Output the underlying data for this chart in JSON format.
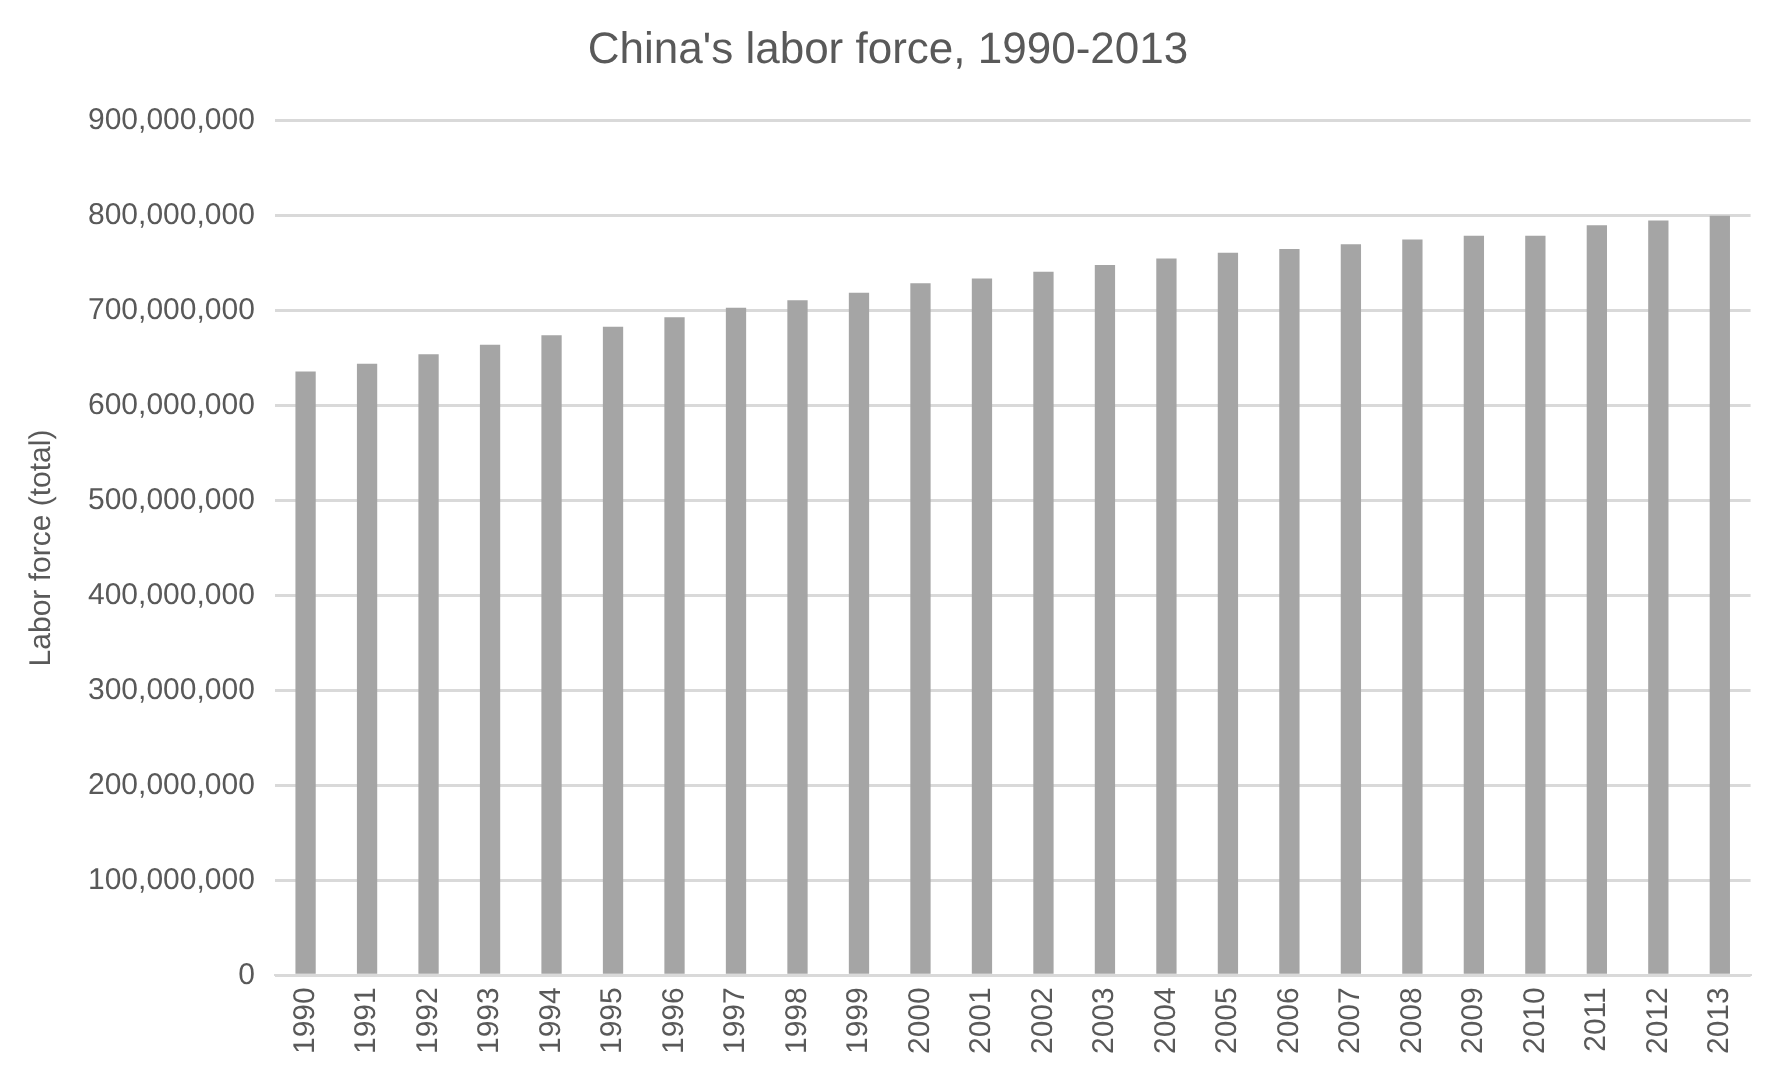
{
  "chart_data": {
    "type": "bar",
    "title": "China's labor force, 1990-2013",
    "ylabel": "Labor force (total)",
    "categories": [
      "1990",
      "1991",
      "1992",
      "1993",
      "1994",
      "1995",
      "1996",
      "1997",
      "1998",
      "1999",
      "2000",
      "2001",
      "2002",
      "2003",
      "2004",
      "2005",
      "2006",
      "2007",
      "2008",
      "2009",
      "2010",
      "2011",
      "2012",
      "2013"
    ],
    "values": [
      636000000,
      644000000,
      654000000,
      664000000,
      674000000,
      683000000,
      693000000,
      703000000,
      711000000,
      719000000,
      729000000,
      734000000,
      741000000,
      748000000,
      755000000,
      761000000,
      765000000,
      770000000,
      775000000,
      779000000,
      779000000,
      790000000,
      795000000,
      800000000
    ],
    "color": "#a5a5a5",
    "ylim": [
      0,
      900000000
    ],
    "yticks": [
      {
        "value": 0,
        "label": "0"
      },
      {
        "value": 100000000,
        "label": "100,000,000"
      },
      {
        "value": 200000000,
        "label": "200,000,000"
      },
      {
        "value": 300000000,
        "label": "300,000,000"
      },
      {
        "value": 400000000,
        "label": "400,000,000"
      },
      {
        "value": 500000000,
        "label": "500,000,000"
      },
      {
        "value": 600000000,
        "label": "600,000,000"
      },
      {
        "value": 700000000,
        "label": "700,000,000"
      },
      {
        "value": 800000000,
        "label": "800,000,000"
      },
      {
        "value": 900000000,
        "label": "900,000,000"
      }
    ],
    "grid": "y"
  }
}
